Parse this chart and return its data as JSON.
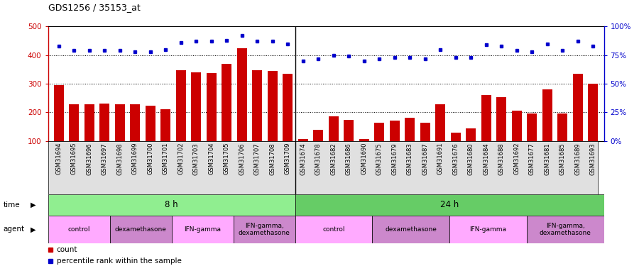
{
  "title": "GDS1256 / 35153_at",
  "samples": [
    "GSM31694",
    "GSM31695",
    "GSM31696",
    "GSM31697",
    "GSM31698",
    "GSM31699",
    "GSM31700",
    "GSM31701",
    "GSM31702",
    "GSM31703",
    "GSM31704",
    "GSM31705",
    "GSM31706",
    "GSM31707",
    "GSM31708",
    "GSM31709",
    "GSM31674",
    "GSM31678",
    "GSM31682",
    "GSM31686",
    "GSM31690",
    "GSM31675",
    "GSM31679",
    "GSM31683",
    "GSM31687",
    "GSM31691",
    "GSM31676",
    "GSM31680",
    "GSM31684",
    "GSM31688",
    "GSM31692",
    "GSM31677",
    "GSM31681",
    "GSM31685",
    "GSM31689",
    "GSM31693"
  ],
  "bar_values": [
    295,
    228,
    228,
    232,
    229,
    228,
    224,
    210,
    348,
    340,
    338,
    370,
    425,
    348,
    345,
    335,
    108,
    140,
    185,
    175,
    108,
    165,
    172,
    180,
    165,
    228,
    130,
    145,
    260,
    252,
    205,
    197,
    280,
    195,
    335,
    300
  ],
  "dot_values": [
    83,
    79,
    79,
    79,
    79,
    78,
    78,
    80,
    86,
    87,
    87,
    88,
    92,
    87,
    87,
    85,
    70,
    72,
    75,
    74,
    70,
    72,
    73,
    73,
    72,
    80,
    73,
    73,
    84,
    83,
    79,
    78,
    85,
    79,
    87,
    83
  ],
  "bar_color": "#cc0000",
  "dot_color": "#0000cc",
  "ylim_left": [
    100,
    500
  ],
  "ylim_right": [
    0,
    100
  ],
  "yticks_left": [
    100,
    200,
    300,
    400,
    500
  ],
  "yticks_right": [
    0,
    25,
    50,
    75,
    100
  ],
  "ytick_labels_right": [
    "0%",
    "25%",
    "50%",
    "75%",
    "100%"
  ],
  "grid_values": [
    200,
    300,
    400
  ],
  "divide_index": 16,
  "time_groups": [
    {
      "label": "8 h",
      "start": 0,
      "end": 16,
      "color": "#90ee90"
    },
    {
      "label": "24 h",
      "start": 16,
      "end": 36,
      "color": "#66cc66"
    }
  ],
  "agent_groups": [
    {
      "label": "control",
      "start": 0,
      "end": 4,
      "color": "#ffaaff"
    },
    {
      "label": "dexamethasone",
      "start": 4,
      "end": 8,
      "color": "#cc88cc"
    },
    {
      "label": "IFN-gamma",
      "start": 8,
      "end": 12,
      "color": "#ffaaff"
    },
    {
      "label": "IFN-gamma,\ndexamethasone",
      "start": 12,
      "end": 16,
      "color": "#cc88cc"
    },
    {
      "label": "control",
      "start": 16,
      "end": 21,
      "color": "#ffaaff"
    },
    {
      "label": "dexamethasone",
      "start": 21,
      "end": 26,
      "color": "#cc88cc"
    },
    {
      "label": "IFN-gamma",
      "start": 26,
      "end": 31,
      "color": "#ffaaff"
    },
    {
      "label": "IFN-gamma,\ndexamethasone",
      "start": 31,
      "end": 36,
      "color": "#cc88cc"
    }
  ],
  "legend_count_color": "#cc0000",
  "legend_dot_color": "#0000cc",
  "background_color": "#ffffff",
  "chart_bg": "#ffffff"
}
